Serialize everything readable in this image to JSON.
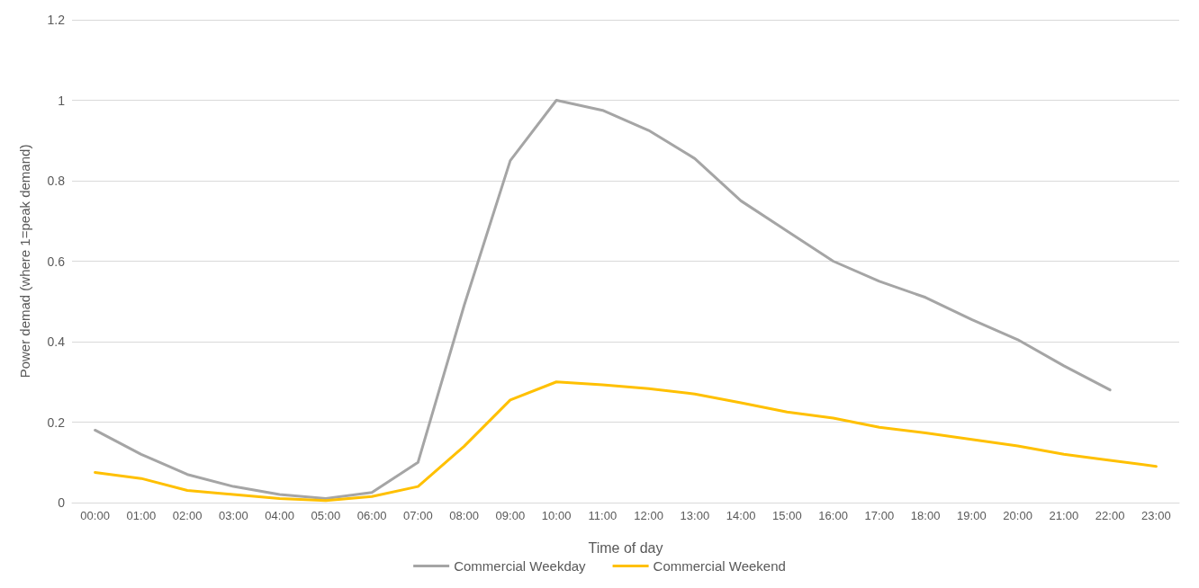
{
  "chart_data": {
    "type": "line",
    "xlabel": "Time of day",
    "ylabel": "Power demad (where 1=peak demand)",
    "categories": [
      "00:00",
      "01:00",
      "02:00",
      "03:00",
      "04:00",
      "05:00",
      "06:00",
      "07:00",
      "08:00",
      "09:00",
      "10:00",
      "11:00",
      "12:00",
      "13:00",
      "14:00",
      "15:00",
      "16:00",
      "17:00",
      "18:00",
      "19:00",
      "20:00",
      "21:00",
      "22:00",
      "23:00"
    ],
    "series": [
      {
        "name": "Commercial Weekday",
        "color": "#a5a5a5",
        "values": [
          0.18,
          0.12,
          0.07,
          0.04,
          0.02,
          0.01,
          0.025,
          0.1,
          0.49,
          0.85,
          1.0,
          0.975,
          0.925,
          0.855,
          0.75,
          0.675,
          0.6,
          0.55,
          0.51,
          0.455,
          0.405,
          0.34,
          0.28,
          null
        ]
      },
      {
        "name": "Commercial Weekend",
        "color": "#ffc000",
        "values": [
          0.075,
          0.06,
          0.03,
          0.02,
          0.01,
          0.005,
          0.015,
          0.04,
          0.14,
          0.255,
          0.3,
          0.293,
          0.283,
          0.27,
          0.248,
          0.225,
          0.21,
          0.187,
          0.173,
          0.157,
          0.141,
          0.12,
          0.105,
          0.09
        ]
      }
    ],
    "ylim": [
      0,
      1.2
    ],
    "yticks": [
      0,
      0.2,
      0.4,
      0.6,
      0.8,
      1,
      1.2
    ],
    "grid": "y",
    "legend": "bottom",
    "marker": "none",
    "line_style": "solid"
  }
}
